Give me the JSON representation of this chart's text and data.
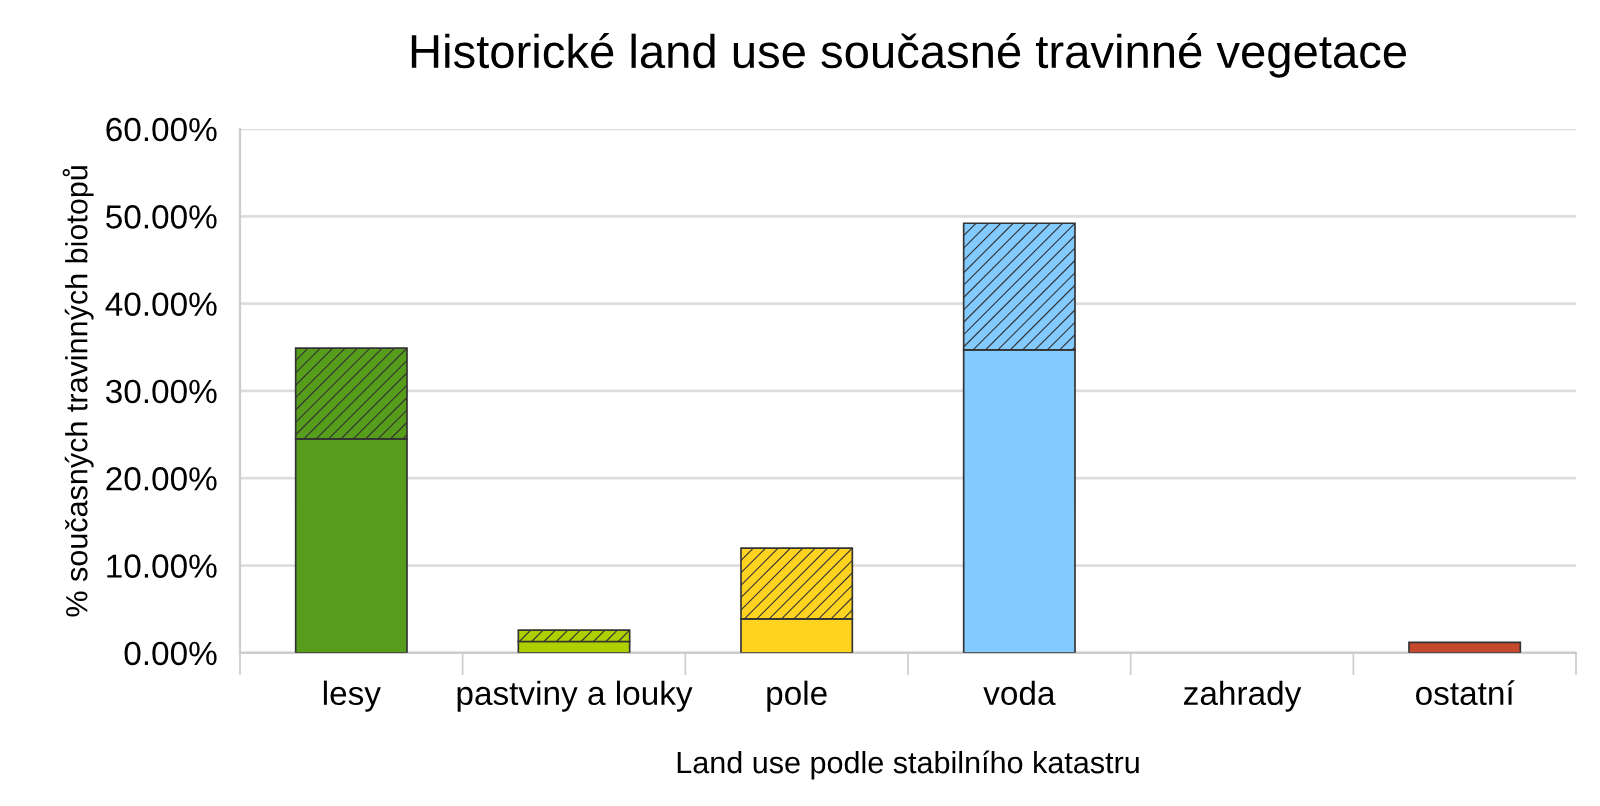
{
  "chart_data": {
    "type": "bar",
    "stacked": true,
    "title": "Historické land use současné travinné vegetace",
    "xlabel": "Land use podle stabilního katastru",
    "ylabel": "% současných travinných biotopů",
    "categories": [
      "lesy",
      "pastviny a louky",
      "pole",
      "voda",
      "zahrady",
      "ostatní"
    ],
    "series": [
      {
        "colors": [
          "#579d1c",
          "#aecf00",
          "#ffd320",
          "#83caff",
          "#7e0021",
          "#c5492d"
        ],
        "values": [
          24.5,
          1.3,
          3.9,
          34.7,
          0,
          1.2
        ]
      },
      {
        "colors": [
          "#579d1c",
          "#aecf00",
          "#ffd320",
          "#83caff",
          "#7e0021",
          "#c5492d"
        ],
        "values": [
          10.4,
          1.3,
          8.1,
          14.5,
          0,
          0
        ]
      }
    ],
    "ylim": [
      0,
      60
    ],
    "yticks": [
      {
        "value": 0,
        "label": "0.00%"
      },
      {
        "value": 10,
        "label": "10.00%"
      },
      {
        "value": 20,
        "label": "20.00%"
      },
      {
        "value": 30,
        "label": "30.00%"
      },
      {
        "value": 40,
        "label": "40.00%"
      },
      {
        "value": 50,
        "label": "50.00%"
      },
      {
        "value": 60,
        "label": "60.00%"
      }
    ],
    "grid": "y",
    "legend": false
  }
}
